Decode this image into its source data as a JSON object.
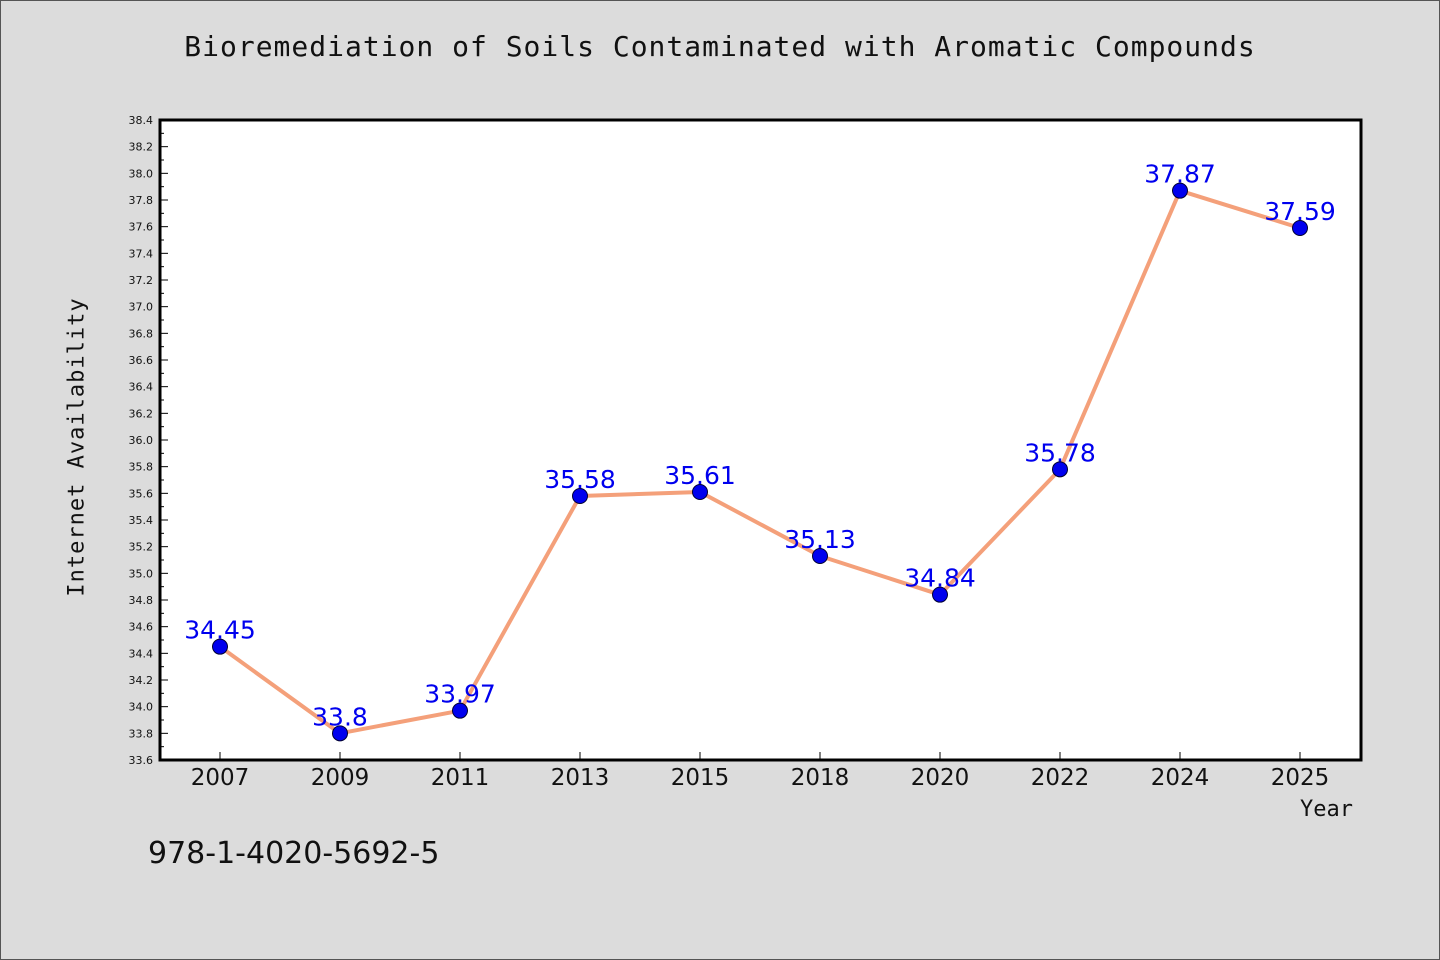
{
  "chart_data": {
    "type": "line",
    "title": "Bioremediation of Soils Contaminated with Aromatic Compounds",
    "xlabel": "Year",
    "ylabel": "Internet Availability",
    "categories": [
      "2007",
      "2009",
      "2011",
      "2013",
      "2015",
      "2018",
      "2020",
      "2022",
      "2024",
      "2025"
    ],
    "series": [
      {
        "values": [
          34.45,
          33.8,
          33.97,
          35.58,
          35.61,
          35.13,
          34.84,
          35.78,
          37.87,
          37.59
        ],
        "labels": [
          "34.45",
          "33.8",
          "33.97",
          "35.58",
          "35.61",
          "35.13",
          "34.84",
          "35.78",
          "37.87",
          "37.59"
        ]
      }
    ],
    "ylim": [
      33.6,
      38.4
    ],
    "yticks": [
      "33.6",
      "33.8",
      "34.0",
      "34.2",
      "34.4",
      "34.6",
      "34.8",
      "35.0",
      "35.2",
      "35.4",
      "35.6",
      "35.8",
      "36.0",
      "36.2",
      "36.4",
      "36.6",
      "36.8",
      "37.0",
      "37.2",
      "37.4",
      "37.6",
      "37.8",
      "38.0",
      "38.2",
      "38.4"
    ],
    "grid": false,
    "colors": {
      "line": "#f4a07a",
      "marker": "#0000ee",
      "label": "#0000ee"
    }
  },
  "footer": {
    "isbn": "978-1-4020-5692-5"
  }
}
